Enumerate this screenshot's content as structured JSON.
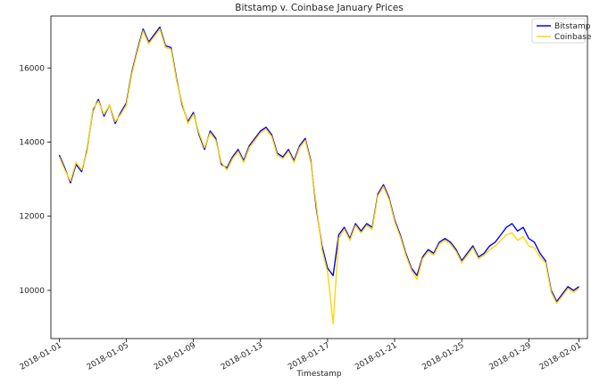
{
  "chart_data": {
    "type": "line",
    "title": "Bitstamp v. Coinbase January Prices",
    "xlabel": "Timestamp",
    "ylabel": "",
    "xlim": [
      "2017-12-31T12:00",
      "2018-02-01T12:00"
    ],
    "ylim": [
      8700,
      17400
    ],
    "x_ticks": [
      "2018-01-01",
      "2018-01-05",
      "2018-01-09",
      "2018-01-13",
      "2018-01-17",
      "2018-01-21",
      "2018-01-25",
      "2018-01-29",
      "2018-02-01"
    ],
    "y_ticks": [
      10000,
      12000,
      14000,
      16000
    ],
    "legend_position": "top-right",
    "grid": false,
    "series": [
      {
        "name": "Bitstamp",
        "color": "#0000ff",
        "x": [
          "2018-01-01T00:00",
          "2018-01-01T08:00",
          "2018-01-01T16:00",
          "2018-01-02T00:00",
          "2018-01-02T08:00",
          "2018-01-02T16:00",
          "2018-01-03T00:00",
          "2018-01-03T08:00",
          "2018-01-03T16:00",
          "2018-01-04T00:00",
          "2018-01-04T08:00",
          "2018-01-04T16:00",
          "2018-01-05T00:00",
          "2018-01-05T08:00",
          "2018-01-05T16:00",
          "2018-01-06T00:00",
          "2018-01-06T08:00",
          "2018-01-06T16:00",
          "2018-01-07T00:00",
          "2018-01-07T08:00",
          "2018-01-07T16:00",
          "2018-01-08T00:00",
          "2018-01-08T08:00",
          "2018-01-08T16:00",
          "2018-01-09T00:00",
          "2018-01-09T08:00",
          "2018-01-09T16:00",
          "2018-01-10T00:00",
          "2018-01-10T08:00",
          "2018-01-10T16:00",
          "2018-01-11T00:00",
          "2018-01-11T08:00",
          "2018-01-11T16:00",
          "2018-01-12T00:00",
          "2018-01-12T08:00",
          "2018-01-12T16:00",
          "2018-01-13T00:00",
          "2018-01-13T08:00",
          "2018-01-13T16:00",
          "2018-01-14T00:00",
          "2018-01-14T08:00",
          "2018-01-14T16:00",
          "2018-01-15T00:00",
          "2018-01-15T08:00",
          "2018-01-15T16:00",
          "2018-01-16T00:00",
          "2018-01-16T08:00",
          "2018-01-16T16:00",
          "2018-01-17T00:00",
          "2018-01-17T08:00",
          "2018-01-17T16:00",
          "2018-01-18T00:00",
          "2018-01-18T08:00",
          "2018-01-18T16:00",
          "2018-01-19T00:00",
          "2018-01-19T08:00",
          "2018-01-19T16:00",
          "2018-01-20T00:00",
          "2018-01-20T08:00",
          "2018-01-20T16:00",
          "2018-01-21T00:00",
          "2018-01-21T08:00",
          "2018-01-21T16:00",
          "2018-01-22T00:00",
          "2018-01-22T08:00",
          "2018-01-22T16:00",
          "2018-01-23T00:00",
          "2018-01-23T08:00",
          "2018-01-23T16:00",
          "2018-01-24T00:00",
          "2018-01-24T08:00",
          "2018-01-24T16:00",
          "2018-01-25T00:00",
          "2018-01-25T08:00",
          "2018-01-25T16:00",
          "2018-01-26T00:00",
          "2018-01-26T08:00",
          "2018-01-26T16:00",
          "2018-01-27T00:00",
          "2018-01-27T08:00",
          "2018-01-27T16:00",
          "2018-01-28T00:00",
          "2018-01-28T08:00",
          "2018-01-28T16:00",
          "2018-01-29T00:00",
          "2018-01-29T08:00",
          "2018-01-29T16:00",
          "2018-01-30T00:00",
          "2018-01-30T08:00",
          "2018-01-30T16:00",
          "2018-01-31T00:00",
          "2018-01-31T08:00",
          "2018-01-31T16:00",
          "2018-02-01T00:00"
        ],
        "values": [
          13650,
          13300,
          12900,
          13400,
          13200,
          13800,
          14850,
          15150,
          14700,
          15000,
          14500,
          14800,
          15050,
          15900,
          16500,
          17050,
          16700,
          16900,
          17100,
          16600,
          16550,
          15700,
          15000,
          14550,
          14800,
          14200,
          13800,
          14300,
          14100,
          13400,
          13300,
          13600,
          13800,
          13500,
          13900,
          14100,
          14300,
          14400,
          14200,
          13700,
          13600,
          13800,
          13500,
          13900,
          14100,
          13500,
          12200,
          11200,
          10600,
          10400,
          11500,
          11700,
          11400,
          11800,
          11600,
          11800,
          11700,
          12600,
          12850,
          12500,
          11900,
          11500,
          11000,
          10600,
          10400,
          10900,
          11100,
          11000,
          11300,
          11400,
          11300,
          11100,
          10800,
          11000,
          11200,
          10900,
          11000,
          11200,
          11300,
          11500,
          11700,
          11800,
          11600,
          11700,
          11400,
          11300,
          11000,
          10800,
          10000,
          9700,
          9900,
          10100,
          10000,
          10100
        ]
      },
      {
        "name": "Coinbase",
        "color": "#ffd700",
        "x": [
          "2018-01-01T00:00",
          "2018-01-01T08:00",
          "2018-01-01T16:00",
          "2018-01-02T00:00",
          "2018-01-02T08:00",
          "2018-01-02T16:00",
          "2018-01-03T00:00",
          "2018-01-03T08:00",
          "2018-01-03T16:00",
          "2018-01-04T00:00",
          "2018-01-04T08:00",
          "2018-01-04T16:00",
          "2018-01-05T00:00",
          "2018-01-05T08:00",
          "2018-01-05T16:00",
          "2018-01-06T00:00",
          "2018-01-06T08:00",
          "2018-01-06T16:00",
          "2018-01-07T00:00",
          "2018-01-07T08:00",
          "2018-01-07T16:00",
          "2018-01-08T00:00",
          "2018-01-08T08:00",
          "2018-01-08T16:00",
          "2018-01-09T00:00",
          "2018-01-09T08:00",
          "2018-01-09T16:00",
          "2018-01-10T00:00",
          "2018-01-10T08:00",
          "2018-01-10T16:00",
          "2018-01-11T00:00",
          "2018-01-11T08:00",
          "2018-01-11T16:00",
          "2018-01-12T00:00",
          "2018-01-12T08:00",
          "2018-01-12T16:00",
          "2018-01-13T00:00",
          "2018-01-13T08:00",
          "2018-01-13T16:00",
          "2018-01-14T00:00",
          "2018-01-14T08:00",
          "2018-01-14T16:00",
          "2018-01-15T00:00",
          "2018-01-15T08:00",
          "2018-01-15T16:00",
          "2018-01-16T00:00",
          "2018-01-16T08:00",
          "2018-01-16T16:00",
          "2018-01-17T00:00",
          "2018-01-17T08:00",
          "2018-01-17T16:00",
          "2018-01-18T00:00",
          "2018-01-18T08:00",
          "2018-01-18T16:00",
          "2018-01-19T00:00",
          "2018-01-19T08:00",
          "2018-01-19T16:00",
          "2018-01-20T00:00",
          "2018-01-20T08:00",
          "2018-01-20T16:00",
          "2018-01-21T00:00",
          "2018-01-21T08:00",
          "2018-01-21T16:00",
          "2018-01-22T00:00",
          "2018-01-22T08:00",
          "2018-01-22T16:00",
          "2018-01-23T00:00",
          "2018-01-23T08:00",
          "2018-01-23T16:00",
          "2018-01-24T00:00",
          "2018-01-24T08:00",
          "2018-01-24T16:00",
          "2018-01-25T00:00",
          "2018-01-25T08:00",
          "2018-01-25T16:00",
          "2018-01-26T00:00",
          "2018-01-26T08:00",
          "2018-01-26T16:00",
          "2018-01-27T00:00",
          "2018-01-27T08:00",
          "2018-01-27T16:00",
          "2018-01-28T00:00",
          "2018-01-28T08:00",
          "2018-01-28T16:00",
          "2018-01-29T00:00",
          "2018-01-29T08:00",
          "2018-01-29T16:00",
          "2018-01-30T00:00",
          "2018-01-30T08:00",
          "2018-01-30T16:00",
          "2018-01-31T00:00",
          "2018-01-31T08:00",
          "2018-01-31T16:00",
          "2018-02-01T00:00"
        ],
        "values": [
          13600,
          13250,
          12950,
          13450,
          13250,
          13750,
          14900,
          15100,
          14750,
          15000,
          14550,
          14750,
          15000,
          15850,
          16450,
          17000,
          16650,
          16850,
          17050,
          16550,
          16500,
          15650,
          15050,
          14500,
          14750,
          14250,
          13850,
          14250,
          14050,
          13450,
          13250,
          13550,
          13750,
          13450,
          13850,
          14050,
          14250,
          14350,
          14150,
          13650,
          13550,
          13750,
          13450,
          13850,
          14050,
          13450,
          12300,
          11100,
          10500,
          9100,
          11400,
          11650,
          11350,
          11750,
          11550,
          11750,
          11650,
          12550,
          12800,
          12450,
          11850,
          11450,
          10950,
          10550,
          10300,
          10850,
          11050,
          10950,
          11250,
          11350,
          11250,
          11050,
          10750,
          10950,
          11150,
          10850,
          10950,
          11100,
          11200,
          11350,
          11500,
          11550,
          11350,
          11450,
          11200,
          11150,
          10900,
          10750,
          9950,
          9650,
          9850,
          10050,
          9950,
          10050
        ]
      }
    ]
  }
}
